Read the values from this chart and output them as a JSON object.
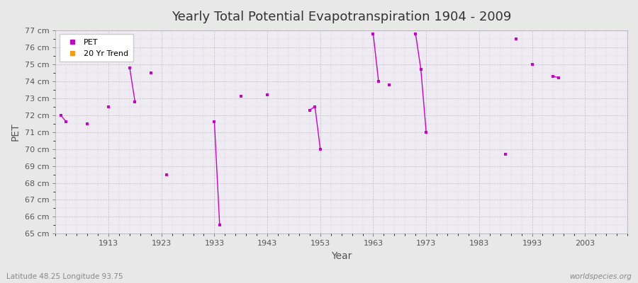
{
  "title": "Yearly Total Potential Evapotranspiration 1904 - 2009",
  "xlabel": "Year",
  "ylabel": "PET",
  "footer_left": "Latitude 48.25 Longitude 93.75",
  "footer_right": "worldspecies.org",
  "background_color": "#e8e8e8",
  "plot_bg_color": "#eeecf2",
  "grid_color": "#bbbbbb",
  "pet_color": "#cc00cc",
  "trend_color": "#ff9900",
  "ylim": [
    65,
    77
  ],
  "ytick_labels": [
    "65 cm",
    "66 cm",
    "67 cm",
    "68 cm",
    "69 cm",
    "70 cm",
    "71 cm",
    "72 cm",
    "73 cm",
    "74 cm",
    "75 cm",
    "76 cm",
    "77 cm"
  ],
  "ytick_values": [
    65,
    66,
    67,
    68,
    69,
    70,
    71,
    72,
    73,
    74,
    75,
    76,
    77
  ],
  "xlim": [
    1903,
    2011
  ],
  "xtick_values": [
    1913,
    1923,
    1933,
    1943,
    1953,
    1963,
    1973,
    1983,
    1993,
    2003
  ],
  "legend_labels": [
    "PET",
    "20 Yr Trend"
  ],
  "segments": [
    [
      [
        1904,
        72.0
      ],
      [
        1905,
        71.6
      ]
    ],
    [
      [
        1909,
        71.5
      ]
    ],
    [
      [
        1913,
        72.5
      ]
    ],
    [
      [
        1917,
        74.8
      ],
      [
        1918,
        72.8
      ]
    ],
    [
      [
        1921,
        74.5
      ]
    ],
    [
      [
        1924,
        68.5
      ]
    ],
    [
      [
        1933,
        71.6
      ],
      [
        1934,
        65.5
      ]
    ],
    [
      [
        1938,
        73.1
      ]
    ],
    [
      [
        1943,
        73.2
      ]
    ],
    [
      [
        1951,
        72.3
      ],
      [
        1952,
        72.5
      ],
      [
        1953,
        70.0
      ]
    ],
    [
      [
        1963,
        76.8
      ],
      [
        1964,
        74.0
      ]
    ],
    [
      [
        1966,
        73.8
      ]
    ],
    [
      [
        1971,
        76.8
      ],
      [
        1972,
        74.7
      ],
      [
        1973,
        71.0
      ]
    ],
    [
      [
        1988,
        69.7
      ]
    ],
    [
      [
        1990,
        76.5
      ]
    ],
    [
      [
        1993,
        75.0
      ]
    ],
    [
      [
        1997,
        74.3
      ],
      [
        1998,
        74.2
      ]
    ]
  ]
}
